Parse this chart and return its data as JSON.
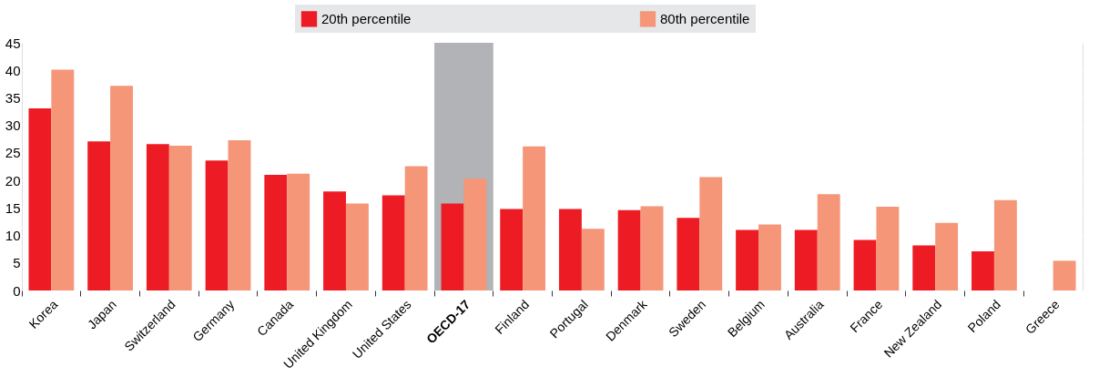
{
  "chart_data": {
    "type": "bar",
    "categories": [
      "Korea",
      "Japan",
      "Switzerland",
      "Germany",
      "Canada",
      "United Kingdom",
      "United States",
      "OECD-17",
      "Finland",
      "Portugal",
      "Denmark",
      "Sweden",
      "Belgium",
      "Australia",
      "France",
      "New Zealand",
      "Poland",
      "Greece"
    ],
    "series": [
      {
        "name": "20th percentile",
        "color": "#ed1c24",
        "values": [
          33.1,
          27.1,
          26.6,
          23.6,
          21.0,
          18.0,
          17.3,
          15.8,
          14.8,
          14.8,
          14.6,
          13.2,
          11.0,
          11.0,
          9.2,
          8.2,
          7.1,
          null
        ]
      },
      {
        "name": "80th percentile",
        "color": "#f59679",
        "values": [
          40.1,
          37.2,
          26.3,
          27.3,
          21.2,
          15.8,
          22.6,
          20.3,
          26.2,
          11.2,
          15.3,
          20.6,
          12.0,
          17.5,
          15.2,
          12.3,
          16.4,
          5.4
        ]
      }
    ],
    "ylim": [
      0,
      45
    ],
    "yticks": [
      0,
      5,
      10,
      15,
      20,
      25,
      30,
      35,
      40,
      45
    ],
    "bands": [
      {
        "axis": "x",
        "from": "OECD-17",
        "to": "OECD-17",
        "color": "#b1b3b6"
      }
    ],
    "grid": "y",
    "legend": "top"
  }
}
